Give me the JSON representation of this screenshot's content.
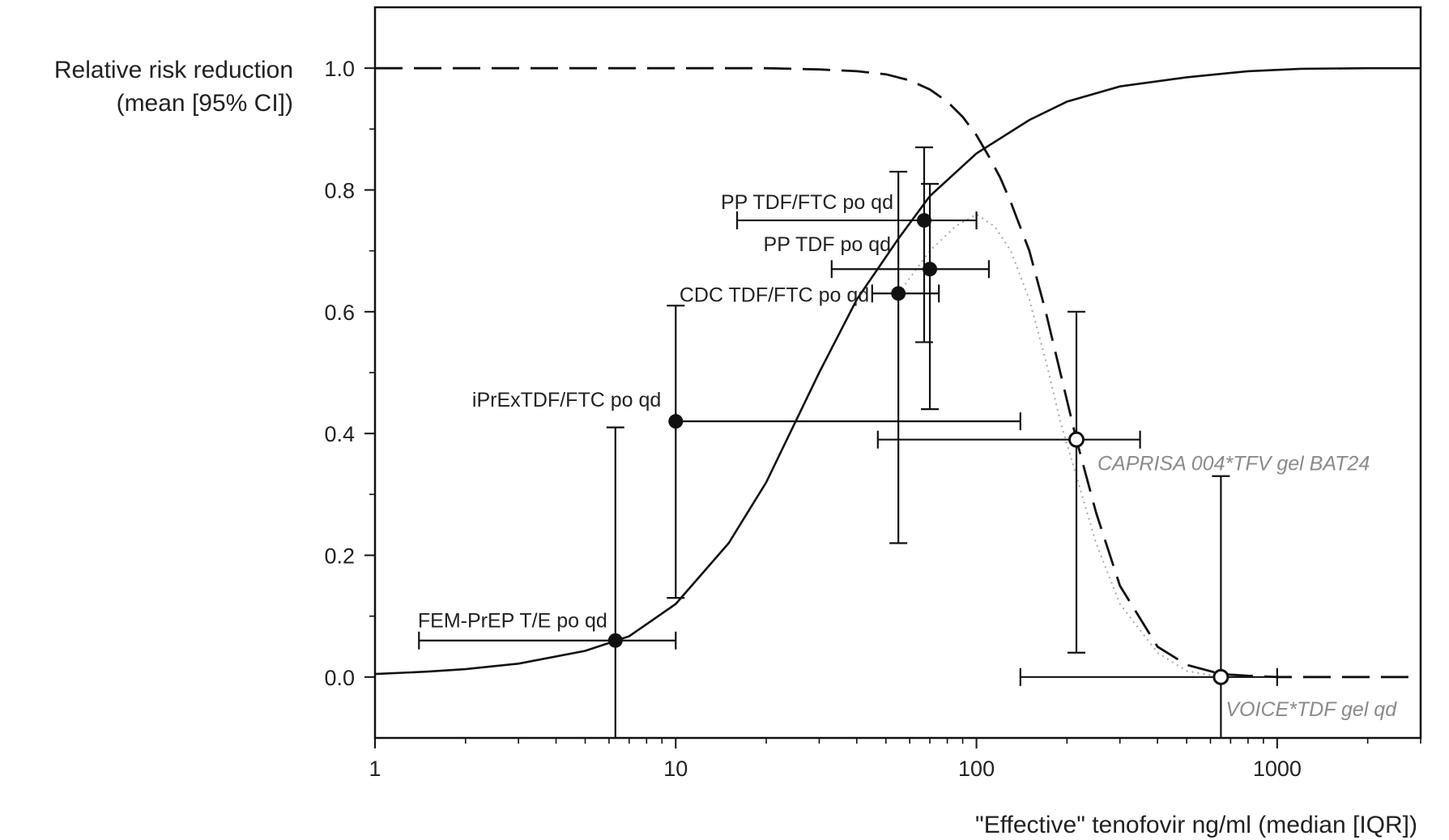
{
  "chart_data": {
    "type": "scatter",
    "title": "",
    "xlabel": "\"Effective\" tenofovir ng/ml (median [IQR])",
    "ylabel_lines": [
      "Relative risk reduction",
      "(mean [95% CI])"
    ],
    "x_scale": "log",
    "xlim": [
      1,
      3000
    ],
    "ylim": [
      -0.1,
      1.1
    ],
    "x_ticks": [
      1,
      10,
      100,
      1000
    ],
    "x_tick_labels": [
      "1",
      "10",
      "100",
      "1000"
    ],
    "y_ticks": [
      0.0,
      0.2,
      0.4,
      0.6,
      0.8,
      1.0
    ],
    "y_tick_labels": [
      "0.0",
      "0.2",
      "0.4",
      "0.6",
      "0.8",
      "1.0"
    ],
    "grid": false,
    "points": [
      {
        "label": "FEM-PrEP T/E po qd",
        "x": 6.3,
        "y": 0.06,
        "x_lo": 1.4,
        "x_hi": 10,
        "y_lo": -0.1,
        "y_hi": 0.41,
        "marker": "filled",
        "label_style": "dark"
      },
      {
        "label": "iPrExTDF/FTC po qd",
        "x": 10,
        "y": 0.42,
        "x_lo": 10,
        "x_hi": 140,
        "y_lo": 0.13,
        "y_hi": 0.61,
        "marker": "filled",
        "label_style": "dark"
      },
      {
        "label": "CDC TDF/FTC po qd",
        "x": 55,
        "y": 0.63,
        "x_lo": 45,
        "x_hi": 75,
        "y_lo": 0.22,
        "y_hi": 0.83,
        "marker": "filled",
        "label_style": "dark"
      },
      {
        "label": "PP TDF/FTC po qd",
        "x": 67,
        "y": 0.75,
        "x_lo": 16,
        "x_hi": 100,
        "y_lo": 0.55,
        "y_hi": 0.87,
        "marker": "filled",
        "label_style": "dark"
      },
      {
        "label": "PP TDF po qd",
        "x": 70,
        "y": 0.67,
        "x_lo": 33,
        "x_hi": 110,
        "y_lo": 0.44,
        "y_hi": 0.81,
        "marker": "filled",
        "label_style": "dark"
      },
      {
        "label": "CAPRISA 004*TFV gel BAT24",
        "x": 215,
        "y": 0.39,
        "x_lo": 47,
        "x_hi": 350,
        "y_lo": 0.04,
        "y_hi": 0.6,
        "marker": "open",
        "label_style": "gray"
      },
      {
        "label": "VOICE*TDF gel qd",
        "x": 650,
        "y": 0.0,
        "x_lo": 140,
        "x_hi": 1000,
        "y_lo": -0.1,
        "y_hi": 0.33,
        "marker": "open",
        "label_style": "gray"
      }
    ],
    "curves": [
      {
        "style": "solid",
        "x": [
          1,
          1.5,
          2,
          3,
          5,
          7,
          10,
          15,
          20,
          30,
          40,
          55,
          70,
          100,
          150,
          200,
          300,
          500,
          800,
          1200,
          2000,
          3000
        ],
        "y": [
          0.005,
          0.009,
          0.013,
          0.022,
          0.043,
          0.067,
          0.12,
          0.22,
          0.32,
          0.5,
          0.62,
          0.72,
          0.79,
          0.86,
          0.915,
          0.945,
          0.97,
          0.985,
          0.995,
          0.999,
          1.0,
          1.0
        ]
      },
      {
        "style": "dashed",
        "x": [
          1,
          5,
          10,
          20,
          30,
          40,
          50,
          60,
          70,
          80,
          90,
          100,
          110,
          120,
          130,
          150,
          170,
          190,
          215,
          250,
          300,
          400,
          500,
          650,
          800,
          1000,
          1500,
          3000
        ],
        "y": [
          1.0,
          1.0,
          1.0,
          1.0,
          0.998,
          0.995,
          0.99,
          0.98,
          0.965,
          0.945,
          0.92,
          0.89,
          0.855,
          0.82,
          0.78,
          0.7,
          0.6,
          0.5,
          0.39,
          0.27,
          0.15,
          0.05,
          0.02,
          0.005,
          0.002,
          0.0,
          0.0,
          0.0
        ]
      },
      {
        "style": "dotted",
        "x": [
          55,
          70,
          85,
          100,
          115,
          130,
          150,
          170,
          190,
          215,
          250,
          300,
          400,
          500,
          650
        ],
        "y": [
          0.63,
          0.7,
          0.74,
          0.76,
          0.74,
          0.7,
          0.62,
          0.52,
          0.42,
          0.33,
          0.22,
          0.12,
          0.04,
          0.01,
          0.0
        ]
      }
    ]
  }
}
